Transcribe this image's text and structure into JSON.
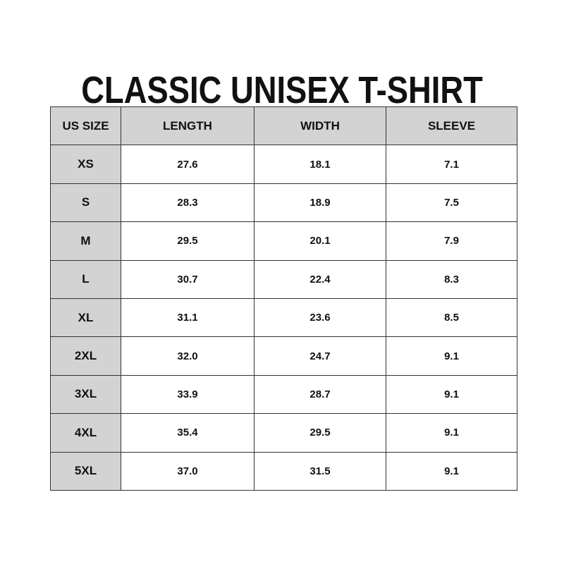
{
  "title": "CLASSIC UNISEX T-SHIRT",
  "colors": {
    "header_fill": "#d4d3d4",
    "border": "#333333"
  },
  "table": {
    "headers": [
      "US SIZE",
      "LENGTH",
      "WIDTH",
      "SLEEVE"
    ],
    "rows": [
      [
        "XS",
        "27.6",
        "18.1",
        "7.1"
      ],
      [
        "S",
        "28.3",
        "18.9",
        "7.5"
      ],
      [
        "M",
        "29.5",
        "20.1",
        "7.9"
      ],
      [
        "L",
        "30.7",
        "22.4",
        "8.3"
      ],
      [
        "XL",
        "31.1",
        "23.6",
        "8.5"
      ],
      [
        "2XL",
        "32.0",
        "24.7",
        "9.1"
      ],
      [
        "3XL",
        "33.9",
        "28.7",
        "9.1"
      ],
      [
        "4XL",
        "35.4",
        "29.5",
        "9.1"
      ],
      [
        "5XL",
        "37.0",
        "31.5",
        "9.1"
      ]
    ]
  }
}
